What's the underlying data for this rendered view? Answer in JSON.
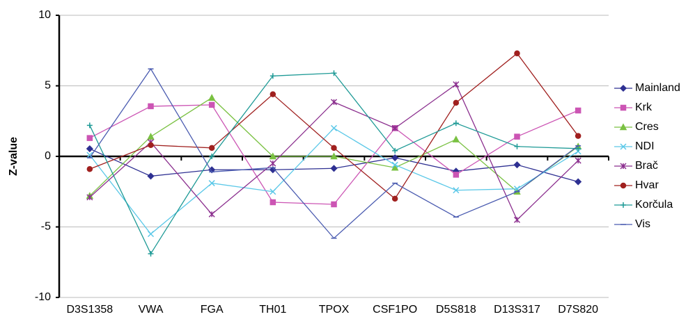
{
  "chart_data": {
    "type": "line",
    "y_label": "Z-value",
    "categories": [
      "D3S1358",
      "VWA",
      "FGA",
      "TH01",
      "TPOX",
      "CSF1PO",
      "D5S818",
      "D13S317",
      "D7S820"
    ],
    "ylim": [
      -10,
      10
    ],
    "yticks": [
      -10,
      -5,
      0,
      5,
      10
    ],
    "grid": true,
    "legend": "right",
    "series": [
      {
        "name": "Mainland",
        "color": "#2e3092",
        "marker": "diamond",
        "values": [
          0.54,
          -1.4,
          -0.95,
          -0.95,
          -0.85,
          -0.1,
          -1.05,
          -0.6,
          -1.8
        ]
      },
      {
        "name": "Krk",
        "color": "#cc55b4",
        "marker": "square",
        "values": [
          1.3,
          3.55,
          3.65,
          -3.25,
          -3.4,
          2.0,
          -1.3,
          1.4,
          3.25
        ]
      },
      {
        "name": "Cres",
        "color": "#7ac142",
        "marker": "triangle",
        "values": [
          -2.8,
          1.4,
          4.15,
          0,
          0,
          -0.8,
          1.2,
          -2.5,
          0.7
        ]
      },
      {
        "name": "NDI",
        "color": "#5bc8e8",
        "marker": "x",
        "values": [
          0.1,
          -5.5,
          -1.9,
          -2.5,
          2.0,
          -0.6,
          -2.4,
          -2.3,
          0.35
        ]
      },
      {
        "name": "Brač",
        "color": "#8b2f8e",
        "marker": "star",
        "values": [
          -2.9,
          1.0,
          -4.1,
          -0.5,
          3.85,
          2.0,
          5.1,
          -4.5,
          -0.3
        ]
      },
      {
        "name": "Hvar",
        "color": "#a0201f",
        "marker": "circle",
        "values": [
          -0.9,
          0.8,
          0.6,
          4.4,
          0.6,
          -3.0,
          3.8,
          7.3,
          1.45
        ]
      },
      {
        "name": "Korčula",
        "color": "#1e9a96",
        "marker": "plus",
        "values": [
          2.2,
          -6.9,
          0,
          5.7,
          5.9,
          0.4,
          2.35,
          0.7,
          0.55
        ]
      },
      {
        "name": "Vis",
        "color": "#4a5bb0",
        "marker": "dash",
        "values": [
          -0.1,
          6.2,
          -1.1,
          -0.8,
          -5.8,
          -1.9,
          -4.3,
          -2.5,
          0.75
        ]
      }
    ]
  }
}
